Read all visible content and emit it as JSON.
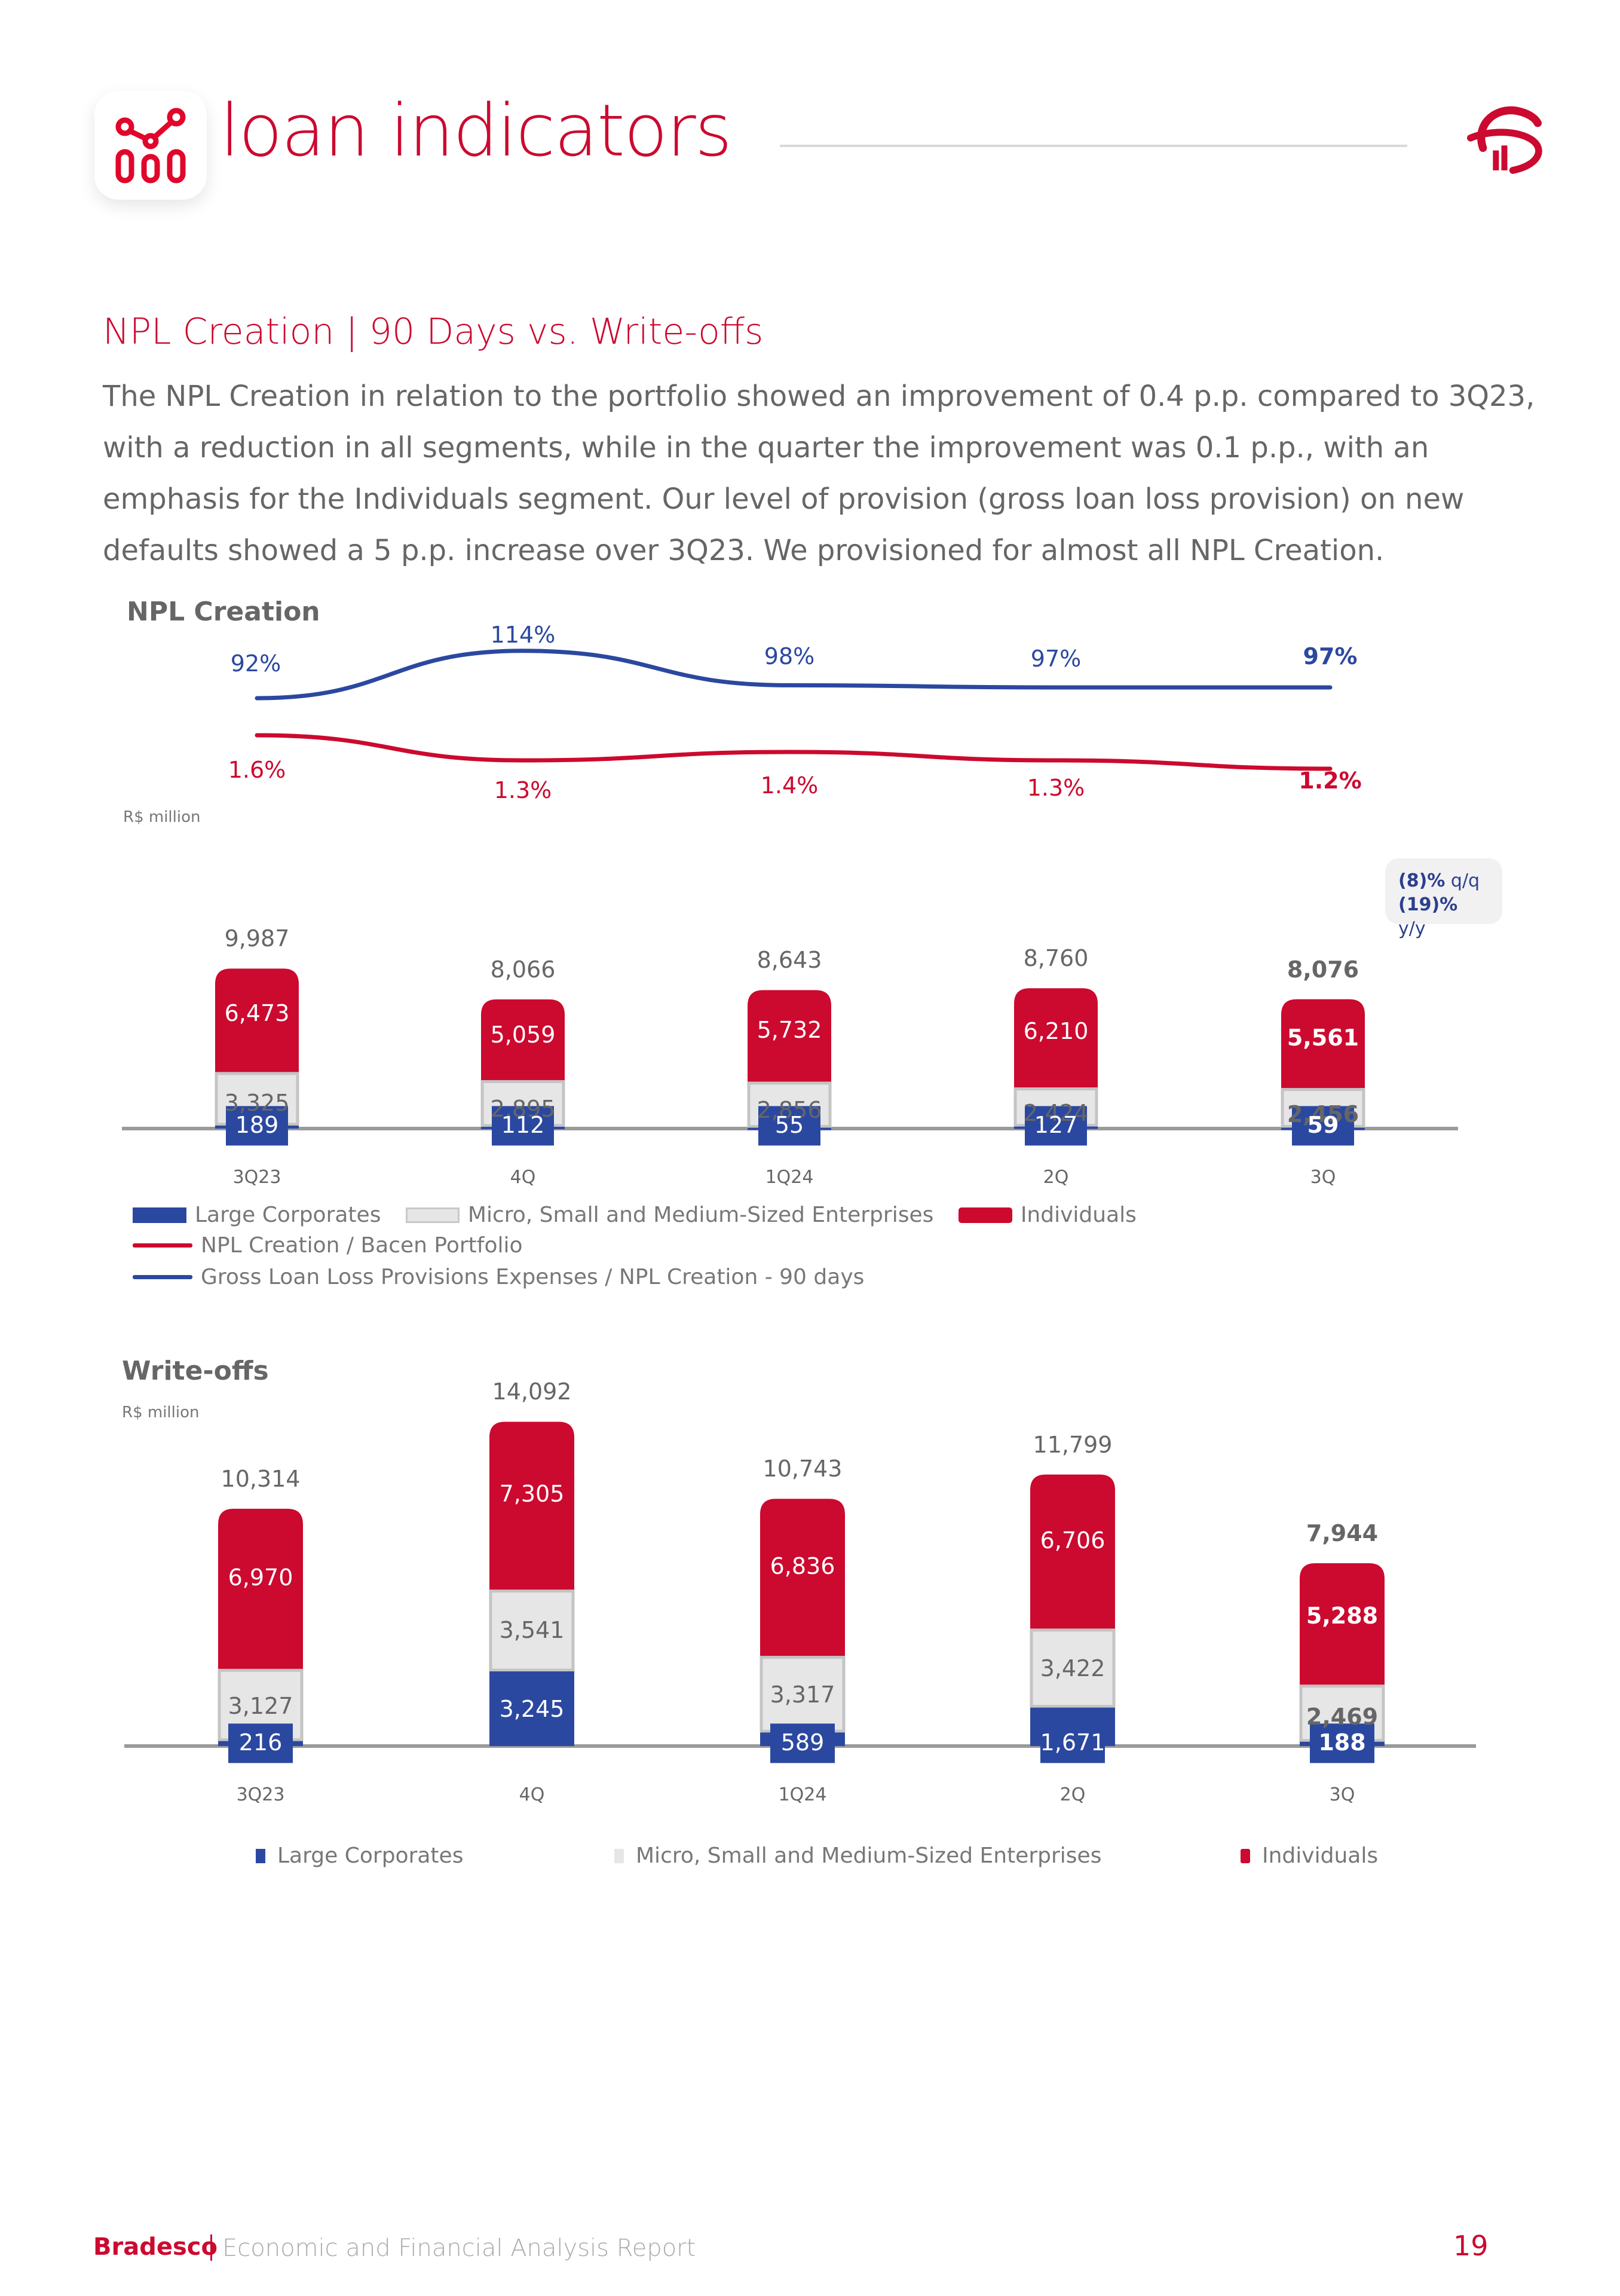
{
  "header": {
    "title": "loan indicators",
    "icon": "chart-nodes-icon",
    "logo": "bradesco-logo-icon"
  },
  "section": {
    "title": "NPL Creation | 90 Days vs. Write-offs",
    "body": "The NPL Creation in relation to the portfolio showed an improvement of 0.4 p.p. compared to 3Q23, with a reduction in all segments, while in the quarter the improvement was 0.1 p.p., with an emphasis for the Individuals segment. Our level of provision (gross loan loss provision) on new defaults showed a 5 p.p. increase over 3Q23. We provisioned for almost all NPL Creation."
  },
  "colors": {
    "brand_red": "#cc092f",
    "large_corporates": "#2b48a0",
    "msme": "#e6e6e6",
    "individuals": "#cc092f",
    "line_blue": "#2b48a0",
    "line_red": "#cc092f",
    "text_gray": "#666666"
  },
  "chart_data": [
    {
      "type": "bar",
      "stacked": true,
      "title": "NPL Creation",
      "unit_label": "R$ million",
      "categories": [
        "3Q23",
        "4Q",
        "1Q24",
        "2Q",
        "3Q"
      ],
      "series": [
        {
          "name": "Large Corporates",
          "values": [
            189,
            112,
            55,
            127,
            59
          ]
        },
        {
          "name": "Micro, Small and Medium-Sized Enterprises",
          "values": [
            3325,
            2895,
            2856,
            2424,
            2456
          ]
        },
        {
          "name": "Individuals",
          "values": [
            6473,
            5059,
            5732,
            6210,
            5561
          ]
        }
      ],
      "totals": [
        9987,
        8066,
        8643,
        8760,
        8076
      ],
      "total_labels": [
        "9,987",
        "8,066",
        "8,643",
        "8,760",
        "8,076"
      ],
      "labels": {
        "Large Corporates": [
          "189",
          "112",
          "55",
          "127",
          "59"
        ],
        "Micro, Small and Medium-Sized Enterprises": [
          "3,325",
          "2,895",
          "2,856",
          "2,424",
          "2,456"
        ],
        "Individuals": [
          "6,473",
          "5,059",
          "5,732",
          "6,210",
          "5,561"
        ]
      },
      "lines": [
        {
          "name": "Gross Loan Loss Provisions Expenses / NPL Creation - 90 days",
          "values": [
            92,
            114,
            98,
            97,
            97
          ],
          "labels": [
            "92%",
            "114%",
            "98%",
            "97%",
            "97%"
          ],
          "unit": "%"
        },
        {
          "name": "NPL Creation / Bacen Portfolio",
          "values": [
            1.6,
            1.3,
            1.4,
            1.3,
            1.2
          ],
          "labels": [
            "1.6%",
            "1.3%",
            "1.4%",
            "1.3%",
            "1.2%"
          ],
          "unit": "%"
        }
      ],
      "annotation": {
        "qq_value": "(8)%",
        "qq_label": "q/q",
        "yy_value": "(19)%",
        "yy_label": "y/y"
      },
      "legend": [
        {
          "label": "Large Corporates",
          "kind": "box",
          "color": "#2b48a0"
        },
        {
          "label": "Micro, Small and Medium-Sized Enterprises",
          "kind": "box",
          "color": "#e6e6e6"
        },
        {
          "label": "Individuals",
          "kind": "box",
          "color": "#cc092f"
        },
        {
          "label": "NPL Creation / Bacen Portfolio",
          "kind": "line",
          "color": "#cc092f"
        },
        {
          "label": "Gross Loan Loss Provisions Expenses / NPL Creation - 90 days",
          "kind": "line",
          "color": "#2b48a0"
        }
      ],
      "legend_position": "bottom",
      "grid": false
    },
    {
      "type": "bar",
      "stacked": true,
      "title": "Write-offs",
      "unit_label": "R$ million",
      "categories": [
        "3Q23",
        "4Q",
        "1Q24",
        "2Q",
        "3Q"
      ],
      "series": [
        {
          "name": "Large Corporates",
          "values": [
            216,
            3245,
            589,
            1671,
            188
          ]
        },
        {
          "name": "Micro, Small and Medium-Sized Enterprises",
          "values": [
            3127,
            3541,
            3317,
            3422,
            2469
          ]
        },
        {
          "name": "Individuals",
          "values": [
            6970,
            7305,
            6836,
            6706,
            5288
          ]
        }
      ],
      "totals": [
        10314,
        14092,
        10743,
        11799,
        7944
      ],
      "total_labels": [
        "10,314",
        "14,092",
        "10,743",
        "11,799",
        "7,944"
      ],
      "labels": {
        "Large Corporates": [
          "216",
          "3,245",
          "589",
          "1,671",
          "188"
        ],
        "Micro, Small and Medium-Sized Enterprises": [
          "3,127",
          "3,541",
          "3,317",
          "3,422",
          "2,469"
        ],
        "Individuals": [
          "6,970",
          "7,305",
          "6,836",
          "6,706",
          "5,288"
        ]
      },
      "legend": [
        {
          "label": "Large Corporates",
          "kind": "box",
          "color": "#2b48a0"
        },
        {
          "label": "Micro, Small and Medium-Sized Enterprises",
          "kind": "box",
          "color": "#e6e6e6"
        },
        {
          "label": "Individuals",
          "kind": "box",
          "color": "#cc092f"
        }
      ],
      "legend_position": "bottom",
      "grid": false
    }
  ],
  "footer": {
    "brand": "Bradesco",
    "report": "Economic and Financial Analysis Report",
    "page_number": "19"
  }
}
